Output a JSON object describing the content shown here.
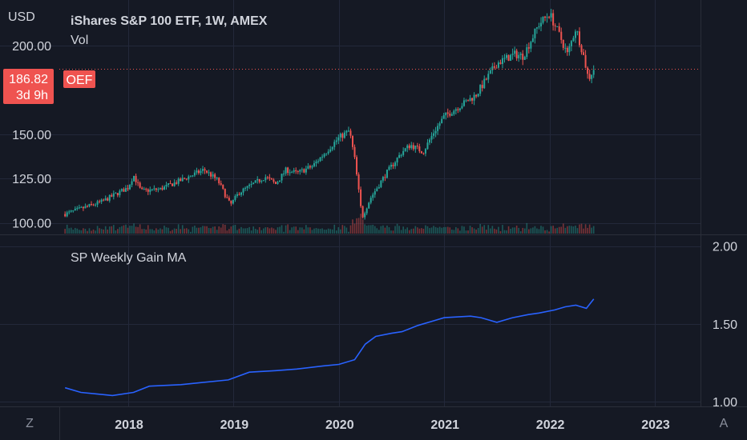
{
  "colors": {
    "background": "#151924",
    "grid": "#23283a",
    "separator": "#2a2e39",
    "text": "#d1d4dc",
    "up": "#26a69a",
    "down": "#ef5350",
    "ma_line": "#2962ff",
    "price_badge": "#ef5350"
  },
  "header": {
    "currency": "USD",
    "title": "iShares S&P 100 ETF, 1W, AMEX",
    "volume_label": "Vol"
  },
  "price_badge": {
    "price": "186.82",
    "countdown": "3d 9h",
    "symbol": "OEF"
  },
  "corner_buttons": {
    "left": "Z",
    "right": "A"
  },
  "chart_data": [
    {
      "type": "candlestick",
      "title": "iShares S&P 100 ETF, 1W, AMEX",
      "ylabel": "USD",
      "y_ticks": [
        "200.00",
        "150.00",
        "125.00",
        "100.00"
      ],
      "ylim": [
        94,
        222
      ],
      "x_ticks": [
        "2018",
        "2019",
        "2020",
        "2021",
        "2022",
        "2023"
      ],
      "last_price": 186.82,
      "anchors": [
        [
          2017.4,
          105
        ],
        [
          2017.75,
          112
        ],
        [
          2018.0,
          120
        ],
        [
          2018.05,
          127
        ],
        [
          2018.12,
          118
        ],
        [
          2018.3,
          119
        ],
        [
          2018.5,
          124
        ],
        [
          2018.72,
          130
        ],
        [
          2018.85,
          124
        ],
        [
          2018.97,
          110
        ],
        [
          2019.05,
          117
        ],
        [
          2019.3,
          126
        ],
        [
          2019.4,
          122
        ],
        [
          2019.5,
          130
        ],
        [
          2019.6,
          128
        ],
        [
          2019.75,
          132
        ],
        [
          2020.0,
          148
        ],
        [
          2020.1,
          152
        ],
        [
          2020.15,
          136
        ],
        [
          2020.22,
          103
        ],
        [
          2020.3,
          114
        ],
        [
          2020.45,
          128
        ],
        [
          2020.6,
          140
        ],
        [
          2020.68,
          144
        ],
        [
          2020.8,
          140
        ],
        [
          2020.9,
          151
        ],
        [
          2021.0,
          160
        ],
        [
          2021.3,
          172
        ],
        [
          2021.5,
          190
        ],
        [
          2021.67,
          195
        ],
        [
          2021.75,
          194
        ],
        [
          2021.9,
          212
        ],
        [
          2022.0,
          218
        ],
        [
          2022.1,
          205
        ],
        [
          2022.17,
          195
        ],
        [
          2022.25,
          210
        ],
        [
          2022.32,
          195
        ],
        [
          2022.37,
          181
        ],
        [
          2022.42,
          186.82
        ]
      ]
    },
    {
      "type": "line",
      "title": "SP Weekly Gain MA",
      "y_ticks": [
        "2.00",
        "1.50",
        "1.00"
      ],
      "ylim": [
        0.97,
        2.07
      ],
      "x": [
        2017.4,
        2017.55,
        2017.7,
        2017.85,
        2018.05,
        2018.2,
        2018.5,
        2018.65,
        2018.95,
        2019.15,
        2019.4,
        2019.6,
        2019.85,
        2020.0,
        2020.15,
        2020.25,
        2020.35,
        2020.5,
        2020.6,
        2020.75,
        2020.9,
        2021.0,
        2021.25,
        2021.35,
        2021.5,
        2021.65,
        2021.8,
        2021.9,
        2022.05,
        2022.15,
        2022.25,
        2022.35,
        2022.42
      ],
      "values": [
        1.09,
        1.06,
        1.05,
        1.04,
        1.06,
        1.1,
        1.11,
        1.12,
        1.14,
        1.19,
        1.2,
        1.21,
        1.23,
        1.24,
        1.27,
        1.37,
        1.42,
        1.44,
        1.45,
        1.49,
        1.52,
        1.54,
        1.55,
        1.54,
        1.51,
        1.54,
        1.56,
        1.57,
        1.59,
        1.61,
        1.62,
        1.6,
        1.66
      ]
    }
  ]
}
